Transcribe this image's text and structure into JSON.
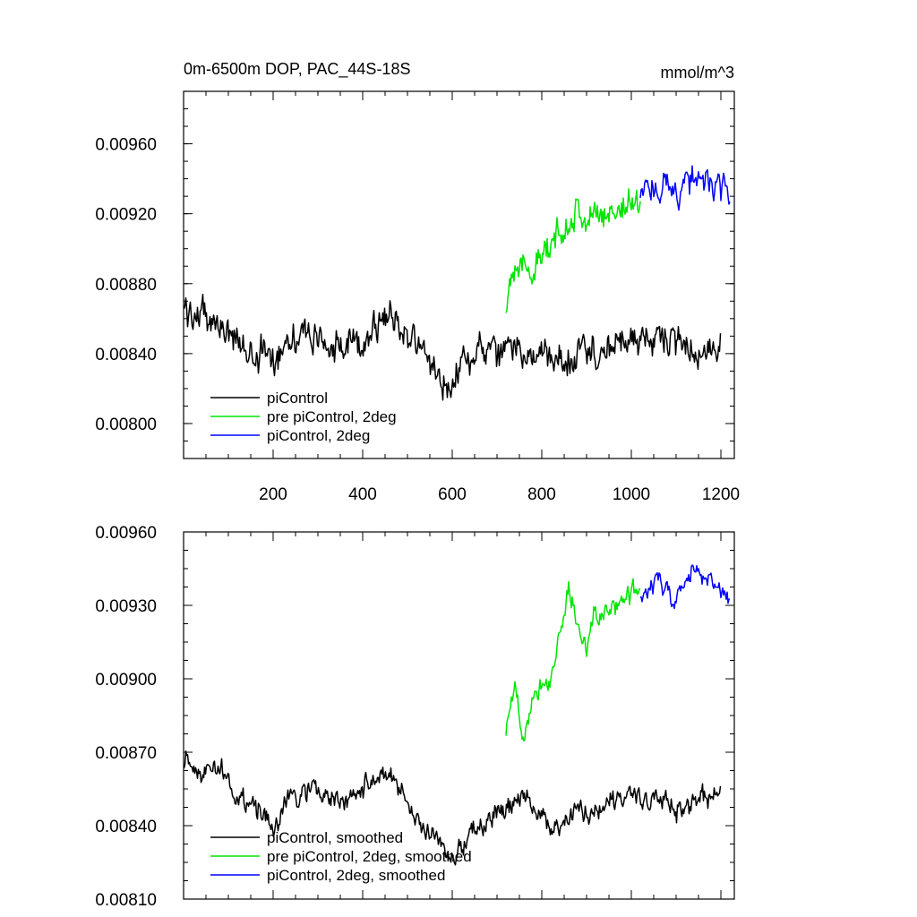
{
  "chart_data": [
    {
      "type": "line",
      "title": "0m-6500m DOP, PAC_44S-18S",
      "units_label": "mmol/m^3",
      "xlim": [
        0,
        1230
      ],
      "ylim": [
        0.0078,
        0.0099
      ],
      "x_ticks": [
        200,
        400,
        600,
        800,
        1000,
        1200
      ],
      "x_tick_labels": [
        "200",
        "400",
        "600",
        "800",
        "1000",
        "1200"
      ],
      "y_ticks": [
        0.008,
        0.0084,
        0.0088,
        0.0092,
        0.0096
      ],
      "y_tick_labels": [
        "0.00800",
        "0.00840",
        "0.00880",
        "0.00920",
        "0.00960"
      ],
      "legend": [
        "piControl",
        "pre piControl, 2deg",
        "piControl, 2deg"
      ],
      "series": [
        {
          "name": "piControl",
          "color": "#000000",
          "x_range": [
            1,
            1200
          ],
          "noise": 0.00015,
          "anchors": [
            [
              1,
              0.00865
            ],
            [
              40,
              0.00862
            ],
            [
              80,
              0.00858
            ],
            [
              120,
              0.00845
            ],
            [
              160,
              0.0084
            ],
            [
              200,
              0.00838
            ],
            [
              240,
              0.00852
            ],
            [
              280,
              0.0085
            ],
            [
              320,
              0.00846
            ],
            [
              360,
              0.00842
            ],
            [
              400,
              0.00848
            ],
            [
              440,
              0.0086
            ],
            [
              480,
              0.00858
            ],
            [
              520,
              0.00845
            ],
            [
              560,
              0.00832
            ],
            [
              590,
              0.0082
            ],
            [
              620,
              0.00835
            ],
            [
              660,
              0.00842
            ],
            [
              700,
              0.00838
            ],
            [
              740,
              0.00845
            ],
            [
              780,
              0.0084
            ],
            [
              820,
              0.00835
            ],
            [
              860,
              0.00838
            ],
            [
              900,
              0.00842
            ],
            [
              940,
              0.0084
            ],
            [
              980,
              0.00846
            ],
            [
              1020,
              0.00848
            ],
            [
              1060,
              0.0085
            ],
            [
              1100,
              0.00844
            ],
            [
              1140,
              0.00842
            ],
            [
              1180,
              0.00838
            ],
            [
              1200,
              0.00845
            ]
          ]
        },
        {
          "name": "pre piControl, 2deg",
          "color": "#00e600",
          "x_range": [
            720,
            1020
          ],
          "noise": 0.00014,
          "anchors": [
            [
              720,
              0.0086
            ],
            [
              725,
              0.0088
            ],
            [
              740,
              0.00895
            ],
            [
              760,
              0.00885
            ],
            [
              780,
              0.0089
            ],
            [
              800,
              0.00895
            ],
            [
              820,
              0.00898
            ],
            [
              840,
              0.0091
            ],
            [
              860,
              0.00918
            ],
            [
              880,
              0.00922
            ],
            [
              900,
              0.00915
            ],
            [
              920,
              0.00918
            ],
            [
              940,
              0.0092
            ],
            [
              960,
              0.00922
            ],
            [
              980,
              0.00925
            ],
            [
              1000,
              0.00926
            ],
            [
              1020,
              0.00928
            ]
          ]
        },
        {
          "name": "piControl, 2deg",
          "color": "#0000ff",
          "x_range": [
            1020,
            1220
          ],
          "noise": 0.00013,
          "anchors": [
            [
              1020,
              0.0093
            ],
            [
              1060,
              0.00938
            ],
            [
              1100,
              0.00932
            ],
            [
              1140,
              0.00942
            ],
            [
              1180,
              0.00936
            ],
            [
              1220,
              0.00932
            ]
          ]
        }
      ]
    },
    {
      "type": "line",
      "xlim": [
        0,
        1230
      ],
      "ylim": [
        0.0081,
        0.0096
      ],
      "x_ticks": [
        200,
        400,
        600,
        800,
        1000,
        1200
      ],
      "y_ticks": [
        0.0081,
        0.0084,
        0.0087,
        0.009,
        0.0093,
        0.0096
      ],
      "y_tick_labels": [
        "0.00810",
        "0.00840",
        "0.00870",
        "0.00900",
        "0.00930",
        "0.00960"
      ],
      "legend": [
        "piControl, smoothed",
        "pre piControl, 2deg, smoothed",
        "piControl, 2deg, smoothed"
      ],
      "series": [
        {
          "name": "piControl, smoothed",
          "color": "#000000",
          "x_range": [
            1,
            1200
          ],
          "noise": 7e-05,
          "anchors": [
            [
              1,
              0.00868
            ],
            [
              40,
              0.00862
            ],
            [
              80,
              0.00865
            ],
            [
              120,
              0.00852
            ],
            [
              160,
              0.00848
            ],
            [
              200,
              0.00838
            ],
            [
              240,
              0.00852
            ],
            [
              280,
              0.00855
            ],
            [
              320,
              0.00852
            ],
            [
              360,
              0.00848
            ],
            [
              400,
              0.00855
            ],
            [
              440,
              0.00862
            ],
            [
              480,
              0.00855
            ],
            [
              520,
              0.00842
            ],
            [
              560,
              0.00835
            ],
            [
              600,
              0.00825
            ],
            [
              640,
              0.00838
            ],
            [
              680,
              0.00842
            ],
            [
              720,
              0.00848
            ],
            [
              760,
              0.00852
            ],
            [
              800,
              0.00842
            ],
            [
              840,
              0.00838
            ],
            [
              880,
              0.00848
            ],
            [
              920,
              0.00845
            ],
            [
              960,
              0.00848
            ],
            [
              1000,
              0.00852
            ],
            [
              1040,
              0.0085
            ],
            [
              1080,
              0.00852
            ],
            [
              1120,
              0.00845
            ],
            [
              1160,
              0.00852
            ],
            [
              1200,
              0.00852
            ]
          ]
        },
        {
          "name": "pre piControl, 2deg, smoothed",
          "color": "#00e600",
          "x_range": [
            720,
            1020
          ],
          "noise": 7e-05,
          "anchors": [
            [
              720,
              0.0088
            ],
            [
              740,
              0.00895
            ],
            [
              760,
              0.00878
            ],
            [
              780,
              0.00895
            ],
            [
              800,
              0.00898
            ],
            [
              820,
              0.009
            ],
            [
              840,
              0.0092
            ],
            [
              860,
              0.00935
            ],
            [
              880,
              0.00922
            ],
            [
              900,
              0.00915
            ],
            [
              920,
              0.00928
            ],
            [
              940,
              0.00925
            ],
            [
              960,
              0.0093
            ],
            [
              980,
              0.00932
            ],
            [
              1000,
              0.00935
            ],
            [
              1020,
              0.00935
            ]
          ]
        },
        {
          "name": "piControl, 2deg, smoothed",
          "color": "#0000ff",
          "x_range": [
            1020,
            1220
          ],
          "noise": 6e-05,
          "anchors": [
            [
              1020,
              0.00935
            ],
            [
              1060,
              0.0094
            ],
            [
              1100,
              0.00932
            ],
            [
              1140,
              0.00945
            ],
            [
              1180,
              0.00938
            ],
            [
              1220,
              0.00932
            ]
          ]
        }
      ]
    }
  ]
}
